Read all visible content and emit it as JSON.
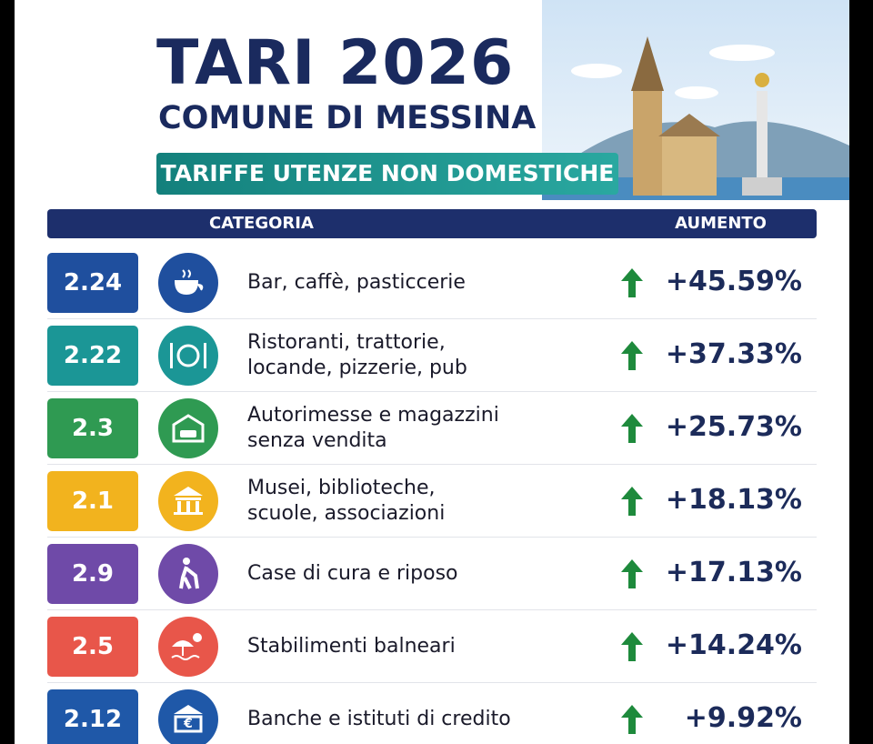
{
  "header": {
    "title": "TARI 2026",
    "subtitle": "COMUNE DI MESSINA",
    "banner": "TARIFFE UTENZE NON DOMESTICHE"
  },
  "table": {
    "columns": [
      "CATEGORIA",
      "AUMENTO"
    ],
    "rows": [
      {
        "code": "2.24",
        "label": [
          "Bar, caffè, pasticcerie"
        ],
        "increase": "+45.59%",
        "color": "#1f4f9e"
      },
      {
        "code": "2.22",
        "label": [
          "Ristoranti, trattorie,",
          "locande, pizzerie, pub"
        ],
        "increase": "+37.33%",
        "color": "#1b9696"
      },
      {
        "code": "2.3",
        "label": [
          "Autorimesse e magazzini",
          "senza vendita"
        ],
        "increase": "+25.73%",
        "color": "#2f9a52"
      },
      {
        "code": "2.1",
        "label": [
          "Musei, biblioteche,",
          "scuole, associazioni"
        ],
        "increase": "+18.13%",
        "color": "#f2b31e"
      },
      {
        "code": "2.9",
        "label": [
          "Case di cura e riposo"
        ],
        "increase": "+17.13%",
        "color": "#6f4aa8"
      },
      {
        "code": "2.5",
        "label": [
          "Stabilimenti balneari"
        ],
        "increase": "+14.24%",
        "color": "#e8564a"
      },
      {
        "code": "2.12",
        "label": [
          "Banche e istituti di credito"
        ],
        "increase": "+9.92%",
        "color": "#1f58a8"
      }
    ]
  }
}
